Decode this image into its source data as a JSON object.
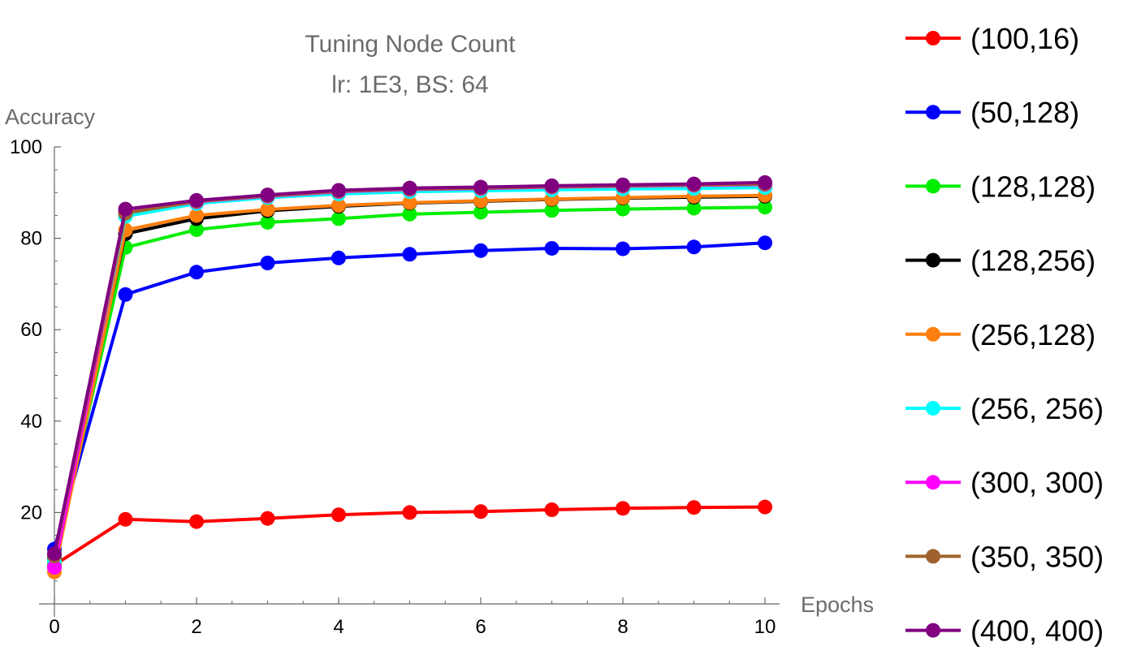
{
  "chart_data": {
    "type": "line",
    "title": "Tuning Node Count",
    "subtitle": "lr: 1E3, BS: 64",
    "xlabel": "Epochs",
    "ylabel": "Accuracy",
    "xlim": [
      0,
      10
    ],
    "ylim": [
      0,
      100
    ],
    "x_ticks": [
      0,
      2,
      4,
      6,
      8,
      10
    ],
    "y_ticks": [
      20,
      40,
      60,
      80,
      100
    ],
    "grid": false,
    "legend_position": "right",
    "x": [
      0,
      1,
      2,
      3,
      4,
      5,
      6,
      7,
      8,
      9,
      10
    ],
    "series": [
      {
        "name": "(100,16)",
        "color": "#ff0000",
        "values": [
          8.5,
          18.5,
          18.0,
          18.7,
          19.5,
          20.0,
          20.2,
          20.6,
          20.9,
          21.1,
          21.2
        ]
      },
      {
        "name": "(50,128)",
        "color": "#0000ff",
        "values": [
          12.0,
          67.7,
          72.6,
          74.6,
          75.7,
          76.5,
          77.3,
          77.8,
          77.7,
          78.1,
          79.0
        ]
      },
      {
        "name": "(128,128)",
        "color": "#00ee00",
        "values": [
          9.0,
          78.0,
          81.9,
          83.5,
          84.3,
          85.3,
          85.7,
          86.1,
          86.4,
          86.6,
          86.8
        ]
      },
      {
        "name": "(128,256)",
        "color": "#000000",
        "values": [
          10.0,
          81.0,
          84.3,
          86.0,
          87.0,
          87.7,
          88.1,
          88.5,
          88.8,
          89.0,
          89.2
        ]
      },
      {
        "name": "(256,128)",
        "color": "#ff7f0e",
        "values": [
          7.0,
          81.8,
          85.0,
          86.3,
          87.2,
          87.8,
          88.2,
          88.6,
          88.9,
          89.2,
          89.4
        ]
      },
      {
        "name": "(256, 256)",
        "color": "#00ffff",
        "values": [
          9.5,
          84.8,
          87.6,
          88.9,
          89.7,
          90.2,
          90.4,
          90.6,
          90.8,
          90.9,
          91.1
        ]
      },
      {
        "name": "(300, 300)",
        "color": "#ff00ff",
        "values": [
          8.0,
          85.7,
          88.0,
          89.2,
          90.2,
          90.7,
          90.9,
          91.2,
          91.4,
          91.6,
          91.8
        ]
      },
      {
        "name": "(350, 350)",
        "color": "#a0622d",
        "values": [
          10.5,
          85.5,
          88.1,
          89.3,
          90.3,
          90.8,
          91.0,
          91.3,
          91.5,
          91.7,
          91.9
        ]
      },
      {
        "name": "(400, 400)",
        "color": "#800080",
        "values": [
          11.0,
          86.4,
          88.3,
          89.5,
          90.5,
          91.0,
          91.2,
          91.5,
          91.7,
          91.9,
          92.2
        ]
      }
    ]
  }
}
